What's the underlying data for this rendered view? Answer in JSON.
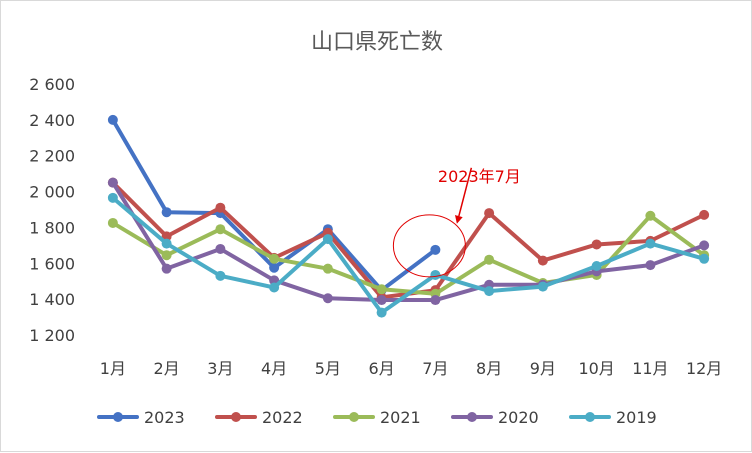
{
  "chart_data": {
    "type": "line",
    "title": "山口県死亡数",
    "categories": [
      "1月",
      "2月",
      "3月",
      "4月",
      "5月",
      "6月",
      "7月",
      "8月",
      "9月",
      "10月",
      "11月",
      "12月"
    ],
    "ylim": [
      1200,
      2600
    ],
    "yticks": [
      1200,
      1400,
      1600,
      1800,
      2000,
      2200,
      2400,
      2600
    ],
    "ytick_labels": [
      "1 200",
      "1 400",
      "1 600",
      "1 800",
      "2 000",
      "2 200",
      "2 400",
      "2 600"
    ],
    "grid": false,
    "legend_position": "bottom",
    "series": [
      {
        "name": "2023",
        "color": "#4472C4",
        "values": [
          2400,
          1885,
          1880,
          1575,
          1790,
          1450,
          1675,
          null,
          null,
          null,
          null,
          null
        ]
      },
      {
        "name": "2022",
        "color": "#C0504D",
        "values": [
          2050,
          1750,
          1910,
          1630,
          1770,
          1410,
          1450,
          1880,
          1615,
          1705,
          1725,
          1870
        ]
      },
      {
        "name": "2021",
        "color": "#9BBB59",
        "values": [
          1825,
          1645,
          1790,
          1625,
          1570,
          1455,
          1430,
          1620,
          1490,
          1535,
          1865,
          1645
        ]
      },
      {
        "name": "2020",
        "color": "#8064A2",
        "values": [
          2050,
          1570,
          1680,
          1505,
          1405,
          1395,
          1395,
          1480,
          1480,
          1555,
          1590,
          1700
        ]
      },
      {
        "name": "2019",
        "color": "#4BACC6",
        "values": [
          1965,
          1710,
          1530,
          1465,
          1735,
          1325,
          1535,
          1445,
          1470,
          1585,
          1710,
          1625
        ]
      }
    ],
    "annotation": {
      "text": "2023年7月",
      "color": "#E00000",
      "target_category": "7月",
      "target_value": 1675
    }
  }
}
